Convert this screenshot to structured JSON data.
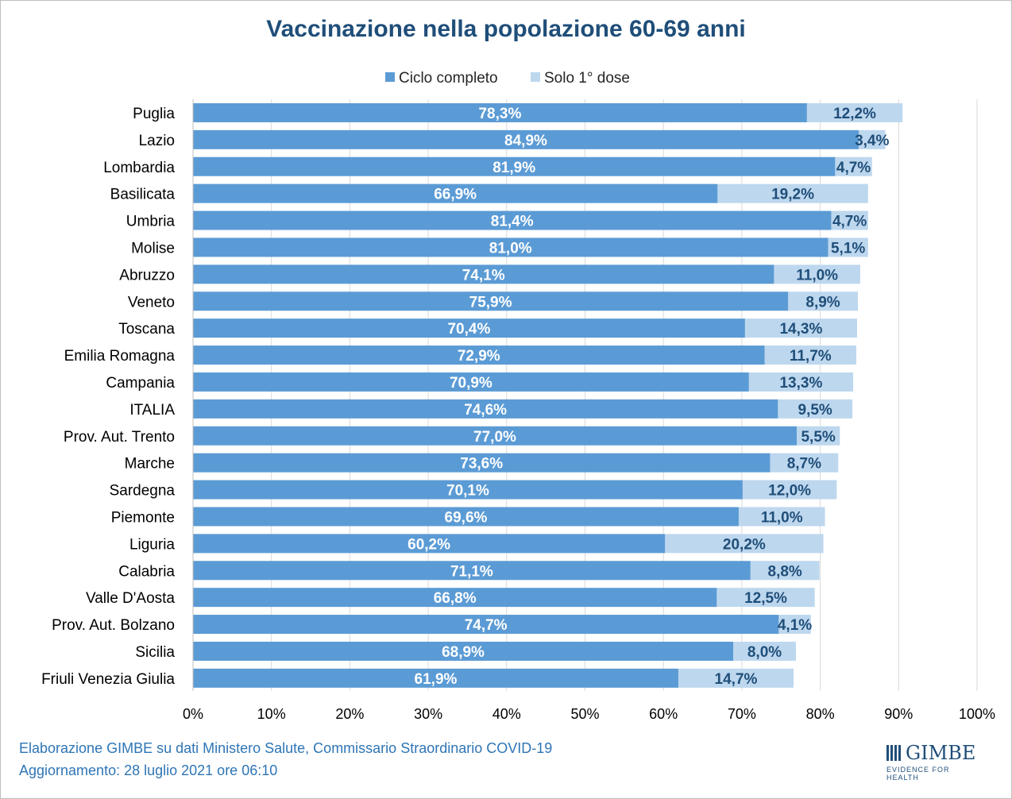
{
  "title": "Vaccinazione nella popolazione 60-69 anni",
  "footer": {
    "line1": "Elaborazione GIMBE su dati Ministero Salute, Commissario Straordinario COVID-19",
    "line2": "Aggiornamento: 28 luglio 2021 ore 06:10"
  },
  "logo": {
    "name": "GIMBE",
    "tagline": "EVIDENCE FOR HEALTH"
  },
  "colors": {
    "complete": "#5b9bd5",
    "first_dose": "#bdd7ee",
    "title": "#1f4e79",
    "footer": "#2e75b6",
    "label_dark": "#1f4e79"
  },
  "chart_data": {
    "type": "bar",
    "orientation": "horizontal",
    "stacked": true,
    "title": "Vaccinazione nella popolazione 60-69 anni",
    "legend_position": "top",
    "grid": true,
    "xlim": [
      0,
      100
    ],
    "x_ticks": [
      "0%",
      "10%",
      "20%",
      "30%",
      "40%",
      "50%",
      "60%",
      "70%",
      "80%",
      "90%",
      "100%"
    ],
    "categories": [
      "Puglia",
      "Lazio",
      "Lombardia",
      "Basilicata",
      "Umbria",
      "Molise",
      "Abruzzo",
      "Veneto",
      "Toscana",
      "Emilia Romagna",
      "Campania",
      "ITALIA",
      "Prov. Aut. Trento",
      "Marche",
      "Sardegna",
      "Piemonte",
      "Liguria",
      "Calabria",
      "Valle D'Aosta",
      "Prov. Aut. Bolzano",
      "Sicilia",
      "Friuli Venezia Giulia"
    ],
    "series": [
      {
        "name": "Ciclo completo",
        "values": [
          78.3,
          84.9,
          81.9,
          66.9,
          81.4,
          81.0,
          74.1,
          75.9,
          70.4,
          72.9,
          70.9,
          74.6,
          77.0,
          73.6,
          70.1,
          69.6,
          60.2,
          71.1,
          66.8,
          74.7,
          68.9,
          61.9
        ],
        "labels": [
          "78,3%",
          "84,9%",
          "81,9%",
          "66,9%",
          "81,4%",
          "81,0%",
          "74,1%",
          "75,9%",
          "70,4%",
          "72,9%",
          "70,9%",
          "74,6%",
          "77,0%",
          "73,6%",
          "70,1%",
          "69,6%",
          "60,2%",
          "71,1%",
          "66,8%",
          "74,7%",
          "68,9%",
          "61,9%"
        ]
      },
      {
        "name": "Solo 1° dose",
        "values": [
          12.2,
          3.4,
          4.7,
          19.2,
          4.7,
          5.1,
          11.0,
          8.9,
          14.3,
          11.7,
          13.3,
          9.5,
          5.5,
          8.7,
          12.0,
          11.0,
          20.2,
          8.8,
          12.5,
          4.1,
          8.0,
          14.7
        ],
        "labels": [
          "12,2%",
          "3,4%",
          "4,7%",
          "19,2%",
          "4,7%",
          "5,1%",
          "11,0%",
          "8,9%",
          "14,3%",
          "11,7%",
          "13,3%",
          "9,5%",
          "5,5%",
          "8,7%",
          "12,0%",
          "11,0%",
          "20,2%",
          "8,8%",
          "12,5%",
          "4,1%",
          "8,0%",
          "14,7%"
        ]
      }
    ]
  }
}
